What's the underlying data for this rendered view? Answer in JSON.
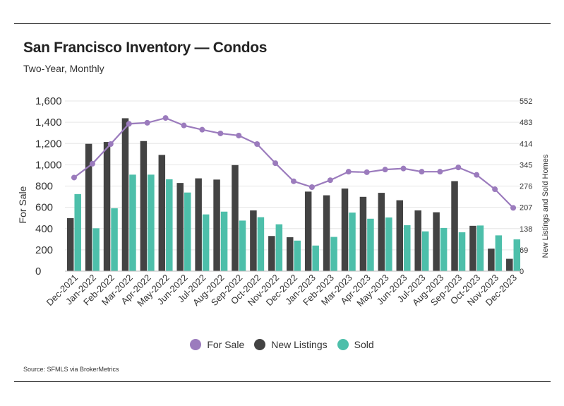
{
  "title": "San Francisco Inventory — Condos",
  "subtitle": "Two-Year, Monthly",
  "source": "Source:  SFMLS via BrokerMetrics",
  "colors": {
    "for_sale": "#9b7bbd",
    "new_listings": "#434343",
    "sold": "#4dbfaa"
  },
  "chart_data": {
    "type": "bar",
    "categories": [
      "Dec-2021",
      "Jan-2022",
      "Feb-2022",
      "Mar-2022",
      "Apr-2022",
      "May-2022",
      "Jun-2022",
      "Jul-2022",
      "Aug-2022",
      "Sep-2022",
      "Oct-2022",
      "Nov-2022",
      "Dec-2022",
      "Jan-2023",
      "Feb-2023",
      "Mar-2023",
      "Apr-2023",
      "May-2023",
      "Jun-2023",
      "Jul-2023",
      "Aug-2023",
      "Sep-2023",
      "Oct-2023",
      "Nov-2023",
      "Dec-2023"
    ],
    "ylabel": "For Sale",
    "y2label": "New Listings and Sold Homes",
    "ylim": [
      0,
      1600
    ],
    "yticks": [
      "0",
      "200",
      "400",
      "600",
      "800",
      "1,000",
      "1,200",
      "1,400",
      "1,600"
    ],
    "y2lim": [
      0,
      552
    ],
    "y2ticks": [
      "0",
      "69",
      "138",
      "207",
      "276",
      "345",
      "414",
      "483",
      "552"
    ],
    "legend_position": "bottom",
    "series": [
      {
        "name": "For Sale",
        "type": "line",
        "axis": "left",
        "values": [
          880,
          1010,
          1195,
          1385,
          1395,
          1440,
          1370,
          1330,
          1295,
          1275,
          1195,
          1015,
          845,
          790,
          855,
          935,
          930,
          955,
          965,
          935,
          935,
          975,
          905,
          770,
          595
        ]
      },
      {
        "name": "New Listings",
        "type": "bar",
        "axis": "right",
        "values": [
          172,
          413,
          419,
          496,
          422,
          377,
          286,
          301,
          297,
          344,
          197,
          114,
          110,
          258,
          246,
          268,
          241,
          254,
          230,
          197,
          191,
          292,
          147,
          73,
          40
        ]
      },
      {
        "name": "Sold",
        "type": "bar",
        "axis": "right",
        "values": [
          250,
          139,
          204,
          313,
          313,
          298,
          255,
          184,
          193,
          164,
          175,
          152,
          99,
          83,
          111,
          190,
          170,
          174,
          149,
          129,
          140,
          126,
          148,
          116,
          103
        ]
      }
    ]
  }
}
